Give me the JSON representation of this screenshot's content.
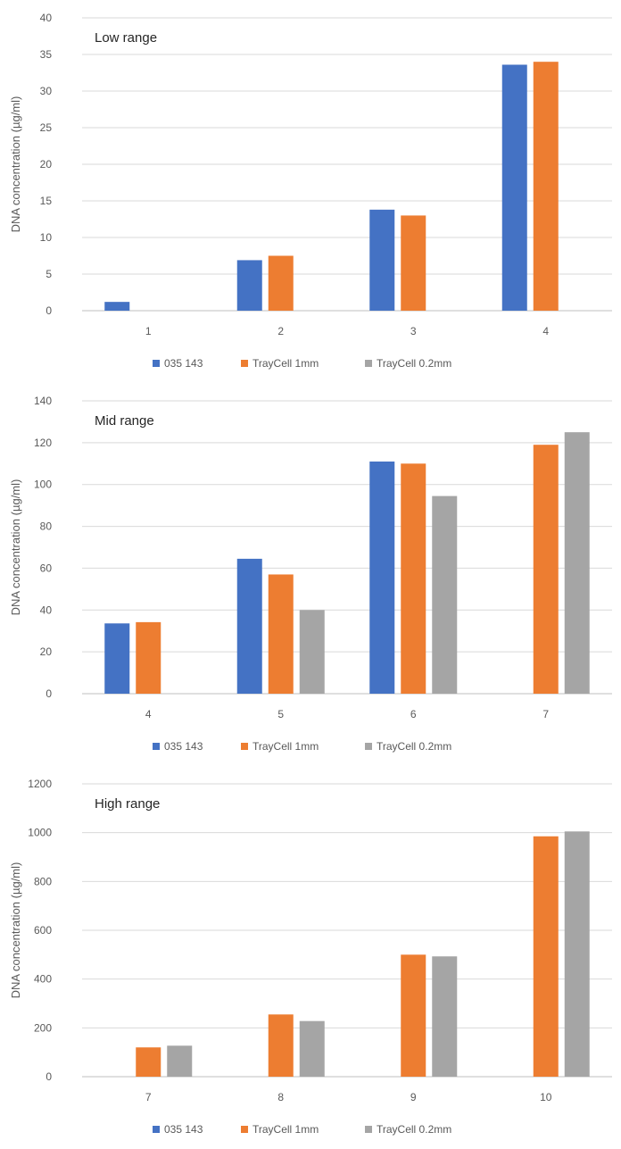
{
  "chart_data": [
    {
      "type": "bar",
      "annotation": "Low range",
      "ylabel": "DNA concentration (µg/ml)",
      "categories": [
        "1",
        "2",
        "3",
        "4"
      ],
      "ylim": [
        0,
        40
      ],
      "yticks": [
        0,
        5,
        10,
        15,
        20,
        25,
        30,
        35,
        40
      ],
      "grid": true,
      "legend_position": "bottom",
      "series": [
        {
          "name": "035 143",
          "color": "#4472C4",
          "values": [
            1.2,
            6.9,
            13.8,
            33.6
          ]
        },
        {
          "name": "TrayCell 1mm",
          "color": "#ED7D31",
          "values": [
            null,
            7.5,
            13.0,
            34.0
          ]
        },
        {
          "name": "TrayCell 0.2mm",
          "color": "#A5A5A5",
          "values": [
            null,
            null,
            null,
            null
          ]
        }
      ]
    },
    {
      "type": "bar",
      "annotation": "Mid range",
      "ylabel": "DNA concentration (µg/ml)",
      "categories": [
        "4",
        "5",
        "6",
        "7"
      ],
      "ylim": [
        0,
        140
      ],
      "yticks": [
        0,
        20,
        40,
        60,
        80,
        100,
        120,
        140
      ],
      "grid": true,
      "legend_position": "bottom",
      "series": [
        {
          "name": "035 143",
          "color": "#4472C4",
          "values": [
            33.6,
            64.5,
            111,
            null
          ]
        },
        {
          "name": "TrayCell 1mm",
          "color": "#ED7D31",
          "values": [
            34.2,
            57,
            110,
            119
          ]
        },
        {
          "name": "TrayCell 0.2mm",
          "color": "#A5A5A5",
          "values": [
            null,
            40,
            94.5,
            125
          ]
        }
      ]
    },
    {
      "type": "bar",
      "annotation": "High range",
      "ylabel": "DNA concentration (µg/ml)",
      "categories": [
        "7",
        "8",
        "9",
        "10"
      ],
      "ylim": [
        0,
        1200
      ],
      "yticks": [
        0,
        200,
        400,
        600,
        800,
        1000,
        1200
      ],
      "grid": true,
      "legend_position": "bottom",
      "series": [
        {
          "name": "035 143",
          "color": "#4472C4",
          "values": [
            null,
            null,
            null,
            null
          ]
        },
        {
          "name": "TrayCell 1mm",
          "color": "#ED7D31",
          "values": [
            120,
            255,
            500,
            985
          ]
        },
        {
          "name": "TrayCell 0.2mm",
          "color": "#A5A5A5",
          "values": [
            127,
            228,
            493,
            1005
          ]
        }
      ]
    }
  ]
}
